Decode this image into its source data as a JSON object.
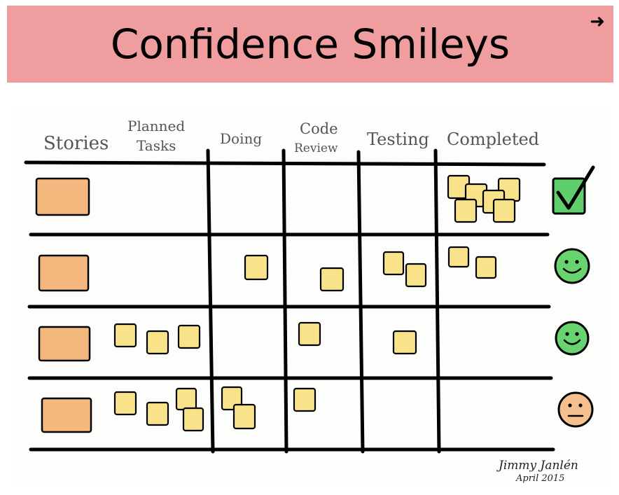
{
  "slide": {
    "title": "Confidence Smileys",
    "next_icon": "right-arrow-icon"
  },
  "board": {
    "columns": [
      "Stories",
      "Planned",
      "Tasks",
      "Doing",
      "Code",
      "Review",
      "Testing",
      "Completed"
    ],
    "signature_name": "Jimmy Janlén",
    "signature_date": "April 2015",
    "colors": {
      "story": "#f4b77e",
      "task": "#f8e38a",
      "check": "#5fcf6c",
      "happy": "#67d46f",
      "neutral": "#f5c08e",
      "line": "#000000"
    },
    "rows": [
      {
        "status": "checkbox-done-icon"
      },
      {
        "status": "happy-smiley-icon"
      },
      {
        "status": "happy-smiley-icon"
      },
      {
        "status": "neutral-smiley-icon"
      }
    ]
  }
}
